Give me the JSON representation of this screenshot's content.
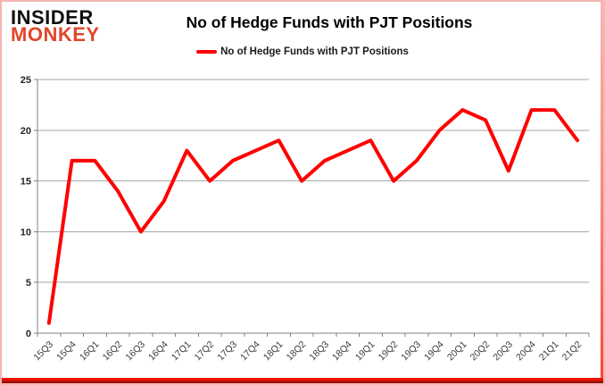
{
  "header": {
    "logo_line1": "INSIDER",
    "logo_line2": "MONKEY",
    "title": "No of Hedge Funds with PJT Positions"
  },
  "legend": {
    "label": "No of Hedge Funds with PJT Positions"
  },
  "colors": {
    "line": "#ff0000",
    "gridline": "#a6a6a6",
    "axis": "#808080",
    "y_label": "#262626",
    "x_label": "#3c3c3c",
    "logo_red": "#e0462b"
  },
  "chart_data": {
    "type": "line",
    "title": "No of Hedge Funds with PJT Positions",
    "categories": [
      "15Q3",
      "15Q4",
      "16Q1",
      "16Q2",
      "16Q3",
      "16Q4",
      "17Q1",
      "17Q2",
      "17Q3",
      "17Q4",
      "18Q1",
      "18Q2",
      "18Q3",
      "18Q4",
      "19Q1",
      "19Q2",
      "19Q3",
      "19Q4",
      "20Q1",
      "20Q2",
      "20Q3",
      "20Q4",
      "21Q1",
      "21Q2"
    ],
    "series": [
      {
        "name": "No of Hedge Funds with PJT Positions",
        "color": "#ff0000",
        "values": [
          1,
          17,
          17,
          14,
          10,
          13,
          18,
          15,
          17,
          18,
          19,
          15,
          17,
          18,
          19,
          15,
          17,
          20,
          22,
          21,
          16,
          22,
          22,
          19
        ]
      }
    ],
    "xlabel": "",
    "ylabel": "",
    "ylim": [
      0,
      25
    ],
    "yticks": [
      0,
      5,
      10,
      15,
      20,
      25
    ],
    "grid": "horizontal",
    "legend_position": "top"
  }
}
